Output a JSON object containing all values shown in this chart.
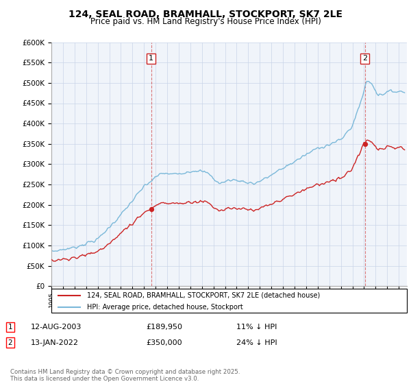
{
  "title": "124, SEAL ROAD, BRAMHALL, STOCKPORT, SK7 2LE",
  "subtitle": "Price paid vs. HM Land Registry's House Price Index (HPI)",
  "hpi_color": "#7ab8d9",
  "property_color": "#cc2222",
  "vline_color": "#cc2222",
  "annotation1_date": "12-AUG-2003",
  "annotation1_price": "£189,950",
  "annotation1_hpi": "11% ↓ HPI",
  "annotation1_year": 2003.62,
  "annotation2_date": "13-JAN-2022",
  "annotation2_price": "£350,000",
  "annotation2_hpi": "24% ↓ HPI",
  "annotation2_year": 2022.04,
  "legend_property": "124, SEAL ROAD, BRAMHALL, STOCKPORT, SK7 2LE (detached house)",
  "legend_hpi": "HPI: Average price, detached house, Stockport",
  "footer": "Contains HM Land Registry data © Crown copyright and database right 2025.\nThis data is licensed under the Open Government Licence v3.0.",
  "ylim": [
    0,
    600000
  ],
  "ytick_step": 50000,
  "background_color": "#f0f4fa",
  "grid_color": "#c8d4e8",
  "price1": 189950,
  "price2": 350000
}
